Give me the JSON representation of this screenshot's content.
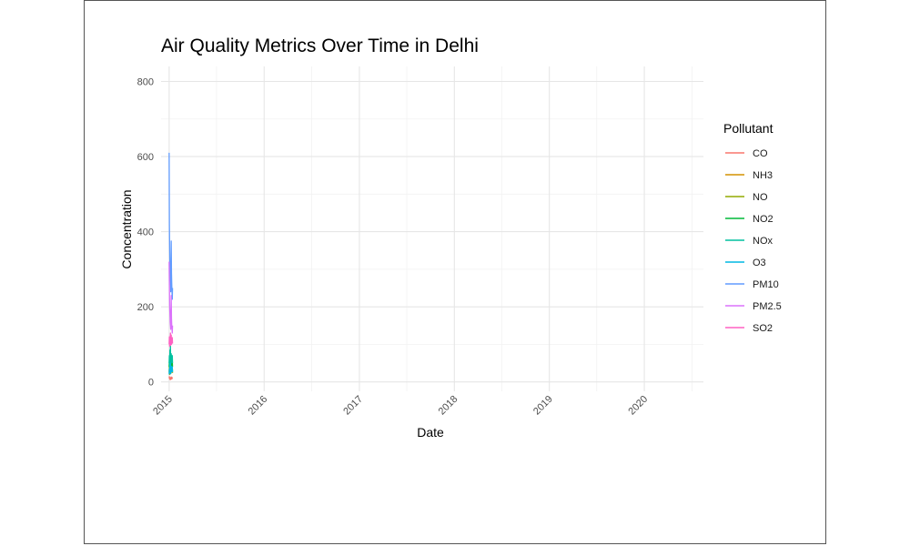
{
  "chart_data": {
    "type": "line",
    "title": "Air Quality Metrics Over Time in Delhi",
    "xlabel": "Date",
    "ylabel": "Concentration",
    "x_type": "date",
    "xlim": [
      "2014-12-01",
      "2020-08-15"
    ],
    "ylim": [
      -25,
      840
    ],
    "x_ticks": [
      "2015-01-01",
      "2016-01-01",
      "2017-01-01",
      "2018-01-01",
      "2019-01-01",
      "2020-01-01"
    ],
    "x_tick_labels": [
      "2015",
      "2016",
      "2017",
      "2018",
      "2019",
      "2020"
    ],
    "y_ticks": [
      0,
      200,
      400,
      600,
      800
    ],
    "y_tick_labels": [
      "0",
      "200",
      "400",
      "600",
      "800"
    ],
    "grid": true,
    "legend": {
      "title": "Pollutant",
      "position": "right"
    },
    "x": [
      "2015-01-01",
      "2015-01-02",
      "2015-01-03",
      "2015-01-04",
      "2015-01-05",
      "2015-01-06",
      "2015-01-07",
      "2015-01-08",
      "2015-01-09",
      "2015-01-10",
      "2015-01-11",
      "2015-01-12",
      "2015-01-13",
      "2015-01-14"
    ],
    "series": [
      {
        "name": "CO",
        "color": "#F8766D",
        "values": [
          10,
          14,
          8,
          12,
          6,
          9,
          11,
          7,
          13,
          8,
          10,
          12,
          9,
          8
        ]
      },
      {
        "name": "NH3",
        "color": "#D39200",
        "values": [
          30,
          35,
          28,
          40,
          32,
          36,
          30,
          34,
          38,
          29,
          33,
          31,
          35,
          30
        ]
      },
      {
        "name": "NO",
        "color": "#93AA00",
        "values": [
          25,
          40,
          20,
          35,
          28,
          45,
          22,
          30,
          38,
          26,
          33,
          29,
          36,
          24
        ]
      },
      {
        "name": "NO2",
        "color": "#00BA38",
        "values": [
          40,
          55,
          35,
          60,
          45,
          80,
          38,
          50,
          58,
          42,
          52,
          47,
          56,
          40
        ]
      },
      {
        "name": "NOx",
        "color": "#00C19F",
        "values": [
          50,
          70,
          45,
          85,
          55,
          95,
          48,
          60,
          75,
          52,
          65,
          58,
          70,
          50
        ]
      },
      {
        "name": "O3",
        "color": "#00B9E3",
        "values": [
          20,
          35,
          25,
          45,
          30,
          50,
          22,
          38,
          42,
          27,
          33,
          31,
          40,
          26
        ]
      },
      {
        "name": "PM10",
        "color": "#619CFF",
        "values": [
          610,
          420,
          350,
          300,
          280,
          260,
          240,
          310,
          375,
          290,
          260,
          240,
          220,
          250
        ]
      },
      {
        "name": "PM2.5",
        "color": "#DB72FB",
        "values": [
          320,
          260,
          200,
          180,
          160,
          150,
          140,
          190,
          230,
          170,
          150,
          140,
          130,
          150
        ]
      },
      {
        "name": "SO2",
        "color": "#FF61C3",
        "values": [
          100,
          120,
          95,
          110,
          105,
          130,
          98,
          115,
          125,
          100,
          112,
          108,
          118,
          102
        ]
      }
    ]
  }
}
